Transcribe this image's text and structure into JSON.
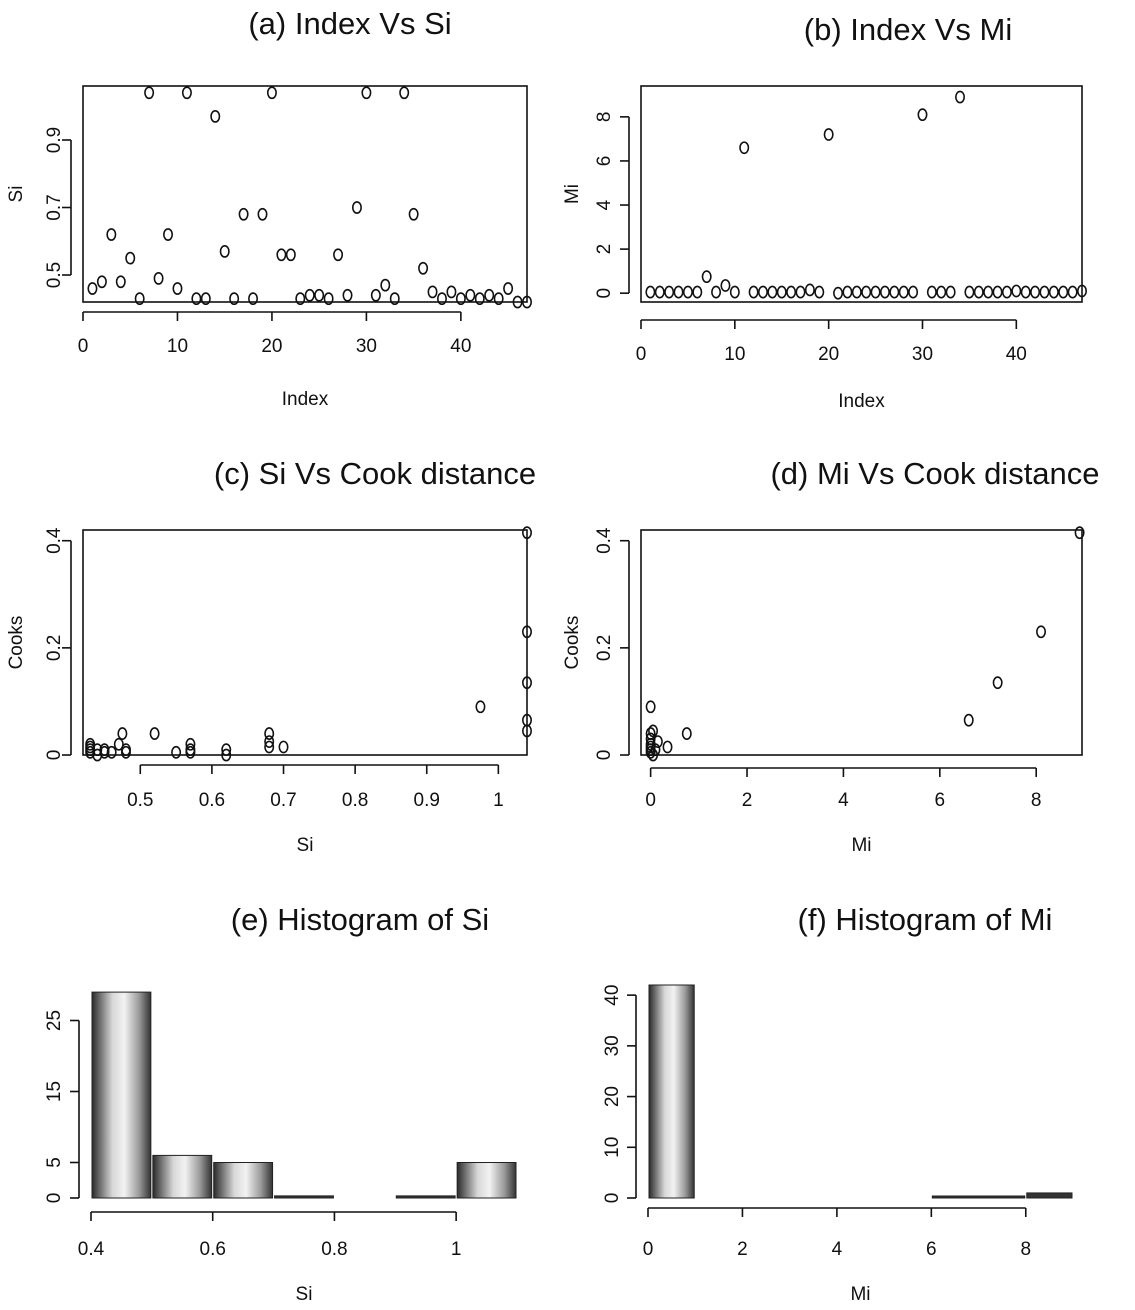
{
  "chart_data": [
    {
      "panel": "a",
      "type": "scatter",
      "title": "(a) Index Vs Si",
      "xlabel": "Index",
      "ylabel": "Si",
      "xlim": [
        0,
        47
      ],
      "ylim": [
        0.42,
        1.06
      ],
      "xticks": [
        0,
        10,
        20,
        30,
        40
      ],
      "yticks": [
        0.5,
        0.7,
        0.9
      ],
      "frame": true,
      "points": [
        [
          1,
          0.46
        ],
        [
          2,
          0.48
        ],
        [
          3,
          0.62
        ],
        [
          4,
          0.48
        ],
        [
          5,
          0.55
        ],
        [
          6,
          0.43
        ],
        [
          7,
          1.04
        ],
        [
          8,
          0.49
        ],
        [
          9,
          0.62
        ],
        [
          10,
          0.46
        ],
        [
          11,
          1.04
        ],
        [
          12,
          0.43
        ],
        [
          13,
          0.43
        ],
        [
          14,
          0.97
        ],
        [
          15,
          0.57
        ],
        [
          16,
          0.43
        ],
        [
          17,
          0.68
        ],
        [
          18,
          0.43
        ],
        [
          19,
          0.68
        ],
        [
          20,
          1.04
        ],
        [
          21,
          0.56
        ],
        [
          22,
          0.56
        ],
        [
          23,
          0.43
        ],
        [
          24,
          0.44
        ],
        [
          25,
          0.44
        ],
        [
          26,
          0.43
        ],
        [
          27,
          0.56
        ],
        [
          28,
          0.44
        ],
        [
          29,
          0.7
        ],
        [
          30,
          1.04
        ],
        [
          31,
          0.44
        ],
        [
          32,
          0.47
        ],
        [
          33,
          0.43
        ],
        [
          34,
          1.04
        ],
        [
          35,
          0.68
        ],
        [
          36,
          0.52
        ],
        [
          37,
          0.45
        ],
        [
          38,
          0.43
        ],
        [
          39,
          0.45
        ],
        [
          40,
          0.43
        ],
        [
          41,
          0.44
        ],
        [
          42,
          0.43
        ],
        [
          43,
          0.44
        ],
        [
          44,
          0.43
        ],
        [
          45,
          0.46
        ],
        [
          46,
          0.42
        ],
        [
          47,
          0.42
        ]
      ]
    },
    {
      "panel": "b",
      "type": "scatter",
      "title": "(b) Index Vs Mi",
      "xlabel": "Index",
      "ylabel": "Mi",
      "xlim": [
        0,
        47
      ],
      "ylim": [
        -0.4,
        9.4
      ],
      "xticks": [
        0,
        10,
        20,
        30,
        40
      ],
      "yticks": [
        0,
        2,
        4,
        6,
        8
      ],
      "frame": true,
      "points": [
        [
          1,
          0.05
        ],
        [
          2,
          0.05
        ],
        [
          3,
          0.05
        ],
        [
          4,
          0.05
        ],
        [
          5,
          0.05
        ],
        [
          6,
          0.05
        ],
        [
          7,
          0.75
        ],
        [
          8,
          0.05
        ],
        [
          9,
          0.35
        ],
        [
          10,
          0.05
        ],
        [
          11,
          6.6
        ],
        [
          12,
          0.05
        ],
        [
          13,
          0.05
        ],
        [
          14,
          0.05
        ],
        [
          15,
          0.05
        ],
        [
          16,
          0.05
        ],
        [
          17,
          0.05
        ],
        [
          18,
          0.15
        ],
        [
          19,
          0.05
        ],
        [
          20,
          7.2
        ],
        [
          21,
          0.0
        ],
        [
          22,
          0.05
        ],
        [
          23,
          0.05
        ],
        [
          24,
          0.05
        ],
        [
          25,
          0.05
        ],
        [
          26,
          0.05
        ],
        [
          27,
          0.05
        ],
        [
          28,
          0.05
        ],
        [
          29,
          0.05
        ],
        [
          30,
          8.1
        ],
        [
          31,
          0.05
        ],
        [
          32,
          0.05
        ],
        [
          33,
          0.05
        ],
        [
          34,
          8.9
        ],
        [
          35,
          0.05
        ],
        [
          36,
          0.05
        ],
        [
          37,
          0.05
        ],
        [
          38,
          0.05
        ],
        [
          39,
          0.05
        ],
        [
          40,
          0.1
        ],
        [
          41,
          0.05
        ],
        [
          42,
          0.05
        ],
        [
          43,
          0.05
        ],
        [
          44,
          0.05
        ],
        [
          45,
          0.05
        ],
        [
          46,
          0.05
        ],
        [
          47,
          0.1
        ]
      ]
    },
    {
      "panel": "c",
      "type": "scatter",
      "title": "(c) Si Vs Cook distance",
      "xlabel": "Si",
      "ylabel": "Cooks",
      "xlim": [
        0.42,
        1.04
      ],
      "ylim": [
        0.0,
        0.42
      ],
      "xticks": [
        0.5,
        0.6,
        0.7,
        0.8,
        0.9,
        1.0
      ],
      "yticks": [
        0.0,
        0.2,
        0.4
      ],
      "frame": true,
      "points": [
        [
          0.43,
          0.01
        ],
        [
          0.43,
          0.02
        ],
        [
          0.43,
          0.005
        ],
        [
          0.43,
          0.015
        ],
        [
          0.44,
          0.01
        ],
        [
          0.44,
          0.0
        ],
        [
          0.45,
          0.005
        ],
        [
          0.45,
          0.01
        ],
        [
          0.46,
          0.005
        ],
        [
          0.47,
          0.02
        ],
        [
          0.475,
          0.04
        ],
        [
          0.48,
          0.01
        ],
        [
          0.48,
          0.005
        ],
        [
          0.52,
          0.04
        ],
        [
          0.55,
          0.005
        ],
        [
          0.57,
          0.02
        ],
        [
          0.57,
          0.01
        ],
        [
          0.57,
          0.005
        ],
        [
          0.62,
          0.01
        ],
        [
          0.62,
          0.0
        ],
        [
          0.68,
          0.04
        ],
        [
          0.68,
          0.025
        ],
        [
          0.68,
          0.015
        ],
        [
          0.7,
          0.015
        ],
        [
          0.975,
          0.09
        ],
        [
          1.04,
          0.415
        ],
        [
          1.04,
          0.23
        ],
        [
          1.04,
          0.135
        ],
        [
          1.04,
          0.065
        ],
        [
          1.04,
          0.045
        ]
      ]
    },
    {
      "panel": "d",
      "type": "scatter",
      "title": "(d) Mi Vs Cook distance",
      "xlabel": "Mi",
      "ylabel": "Cooks",
      "xlim": [
        -0.2,
        8.95
      ],
      "ylim": [
        0.0,
        0.42
      ],
      "xticks": [
        0,
        2,
        4,
        6,
        8
      ],
      "yticks": [
        0.0,
        0.2,
        0.4
      ],
      "frame": true,
      "points": [
        [
          0.0,
          0.09
        ],
        [
          0.0,
          0.04
        ],
        [
          0.05,
          0.045
        ],
        [
          0.0,
          0.03
        ],
        [
          0.0,
          0.02
        ],
        [
          0.0,
          0.015
        ],
        [
          0.0,
          0.01
        ],
        [
          0.0,
          0.005
        ],
        [
          0.05,
          0.0
        ],
        [
          0.1,
          0.01
        ],
        [
          0.15,
          0.025
        ],
        [
          0.35,
          0.015
        ],
        [
          0.75,
          0.04
        ],
        [
          6.6,
          0.065
        ],
        [
          7.2,
          0.135
        ],
        [
          8.1,
          0.23
        ],
        [
          8.9,
          0.415
        ]
      ]
    },
    {
      "panel": "e",
      "type": "histogram",
      "title": "(e) Histogram of Si",
      "xlabel": "Si",
      "ylabel": "",
      "xlim": [
        0.4,
        1.1
      ],
      "ylim": [
        0,
        30
      ],
      "xticks": [
        0.4,
        0.6,
        0.8,
        1.0
      ],
      "yticks": [
        0,
        5,
        15,
        25
      ],
      "bins": [
        {
          "from": 0.4,
          "to": 0.5,
          "count": 29
        },
        {
          "from": 0.5,
          "to": 0.6,
          "count": 6
        },
        {
          "from": 0.6,
          "to": 0.7,
          "count": 5
        },
        {
          "from": 0.7,
          "to": 0.8,
          "count": 0.3
        },
        {
          "from": 0.8,
          "to": 0.9,
          "count": 0
        },
        {
          "from": 0.9,
          "to": 1.0,
          "count": 0.3
        },
        {
          "from": 1.0,
          "to": 1.1,
          "count": 5
        }
      ]
    },
    {
      "panel": "f",
      "type": "histogram",
      "title": "(f) Histogram of Mi",
      "xlabel": "Mi",
      "ylabel": "",
      "xlim": [
        0,
        9
      ],
      "ylim": [
        0,
        42
      ],
      "xticks": [
        0,
        2,
        4,
        6,
        8
      ],
      "yticks": [
        0,
        10,
        20,
        30,
        40
      ],
      "bins": [
        {
          "from": 0,
          "to": 1,
          "count": 42
        },
        {
          "from": 1,
          "to": 6,
          "count": 0
        },
        {
          "from": 6,
          "to": 8,
          "count": 0.3
        },
        {
          "from": 8,
          "to": 9,
          "count": 1
        }
      ]
    }
  ]
}
